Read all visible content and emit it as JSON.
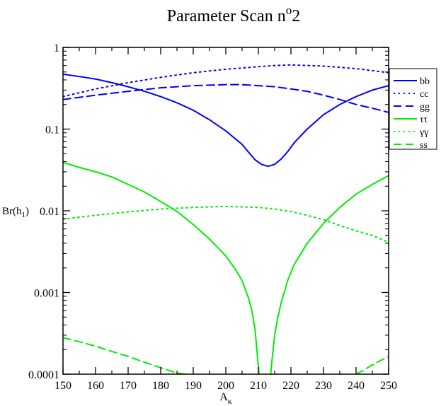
{
  "chart_data": {
    "type": "line",
    "title": "Parameter Scan n",
    "title_sup": "o",
    "title_tail": "2",
    "xlabel": "A",
    "xlabel_sub": "κ",
    "ylabel": "Br(h",
    "ylabel_sub": "1",
    "ylabel_tail": ")",
    "xlim": [
      150,
      250
    ],
    "ylim": [
      0.0001,
      1
    ],
    "yscale": "log",
    "xticks": [
      150,
      160,
      170,
      180,
      190,
      200,
      210,
      220,
      230,
      240,
      250
    ],
    "yticks": [
      {
        "value": 0.0001,
        "label": "0.0001"
      },
      {
        "value": 0.001,
        "label": "0.001"
      },
      {
        "value": 0.01,
        "label": "0.01"
      },
      {
        "value": 0.1,
        "label": "0.1"
      },
      {
        "value": 1,
        "label": "1"
      }
    ],
    "grid": false,
    "legend_position": "top-right, outside",
    "series": [
      {
        "name": "bb",
        "color": "#0000ff",
        "dash": "solid",
        "x": [
          150,
          155,
          160,
          165,
          170,
          175,
          180,
          185,
          190,
          195,
          200,
          205,
          207,
          209,
          211,
          213,
          215,
          217,
          219,
          221,
          225,
          230,
          235,
          240,
          245,
          250
        ],
        "y": [
          0.47,
          0.44,
          0.41,
          0.37,
          0.33,
          0.29,
          0.25,
          0.21,
          0.17,
          0.13,
          0.095,
          0.065,
          0.052,
          0.042,
          0.037,
          0.035,
          0.037,
          0.043,
          0.053,
          0.068,
          0.1,
          0.15,
          0.2,
          0.25,
          0.3,
          0.34
        ]
      },
      {
        "name": "cc",
        "color": "#0000ff",
        "dash": "dotted",
        "x": [
          150,
          160,
          170,
          180,
          190,
          200,
          210,
          215,
          220,
          225,
          230,
          235,
          240,
          245,
          250
        ],
        "y": [
          0.25,
          0.31,
          0.37,
          0.43,
          0.49,
          0.54,
          0.58,
          0.6,
          0.61,
          0.6,
          0.59,
          0.57,
          0.55,
          0.52,
          0.49
        ]
      },
      {
        "name": "gg",
        "color": "#0000ff",
        "dash": "dashed",
        "x": [
          150,
          160,
          170,
          180,
          190,
          200,
          205,
          210,
          215,
          220,
          225,
          230,
          235,
          240,
          245,
          250
        ],
        "y": [
          0.23,
          0.26,
          0.29,
          0.32,
          0.34,
          0.35,
          0.35,
          0.34,
          0.33,
          0.31,
          0.29,
          0.26,
          0.23,
          0.2,
          0.18,
          0.16
        ]
      },
      {
        "name": "ττ",
        "color": "#00ee00",
        "dash": "solid",
        "x": [
          150,
          155,
          160,
          165,
          170,
          175,
          180,
          185,
          190,
          195,
          200,
          203,
          205,
          207,
          208,
          209,
          209.8,
          210.2,
          null,
          213.8,
          214.2,
          215,
          216,
          217,
          219,
          221,
          225,
          230,
          235,
          240,
          245,
          250
        ],
        "y": [
          0.039,
          0.034,
          0.03,
          0.026,
          0.021,
          0.017,
          0.013,
          0.0098,
          0.0068,
          0.0045,
          0.0028,
          0.0019,
          0.0014,
          0.00085,
          0.0006,
          0.00035,
          0.00015,
          0.0001,
          null,
          0.0001,
          0.00015,
          0.0003,
          0.0005,
          0.00075,
          0.0014,
          0.0022,
          0.004,
          0.007,
          0.011,
          0.016,
          0.021,
          0.027
        ]
      },
      {
        "name": "γγ",
        "color": "#00ee00",
        "dash": "dotted",
        "x": [
          150,
          160,
          170,
          180,
          190,
          200,
          210,
          215,
          220,
          225,
          230,
          235,
          240,
          245,
          250
        ],
        "y": [
          0.0079,
          0.0088,
          0.0097,
          0.0105,
          0.011,
          0.0113,
          0.011,
          0.0105,
          0.0098,
          0.0088,
          0.0078,
          0.0066,
          0.0057,
          0.005,
          0.0041
        ]
      },
      {
        "name": "ss",
        "color": "#00ee00",
        "dash": "dashed",
        "x": [
          150,
          155,
          160,
          165,
          170,
          175,
          180,
          185,
          188,
          null,
          240,
          242,
          245,
          248,
          250
        ],
        "y": [
          0.00028,
          0.00025,
          0.00022,
          0.00019,
          0.000165,
          0.00014,
          0.00012,
          0.000103,
          0.0001,
          null,
          0.0001,
          0.00011,
          0.00013,
          0.00015,
          0.000165
        ]
      }
    ]
  }
}
